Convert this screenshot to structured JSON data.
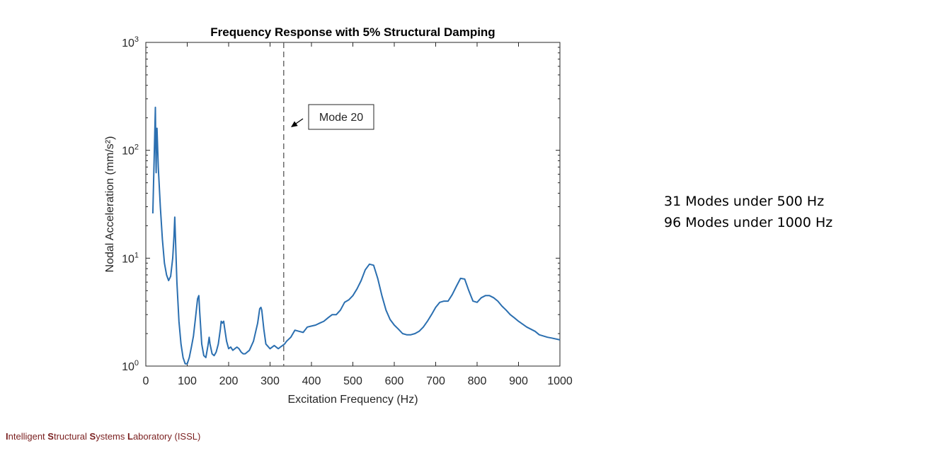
{
  "chart_data": {
    "type": "line",
    "title": "Frequency Response with 5% Structural Damping",
    "xlabel": "Excitation Frequency (Hz)",
    "ylabel": "Nodal Acceleration (mm/s²)",
    "x_scale": "linear",
    "y_scale": "log",
    "xlim": [
      0,
      1000
    ],
    "ylim": [
      1,
      1000
    ],
    "x_ticks": [
      0,
      100,
      200,
      300,
      400,
      500,
      600,
      700,
      800,
      900,
      1000
    ],
    "x_tick_labels": [
      "0",
      "100",
      "200",
      "300",
      "400",
      "500",
      "600",
      "700",
      "800",
      "900",
      "1000"
    ],
    "y_ticks": [
      1,
      10,
      100,
      1000
    ],
    "y_tick_labels": [
      {
        "base": "10",
        "exp": "0"
      },
      {
        "base": "10",
        "exp": "1"
      },
      {
        "base": "10",
        "exp": "2"
      },
      {
        "base": "10",
        "exp": "3"
      }
    ],
    "grid": false,
    "line_color": "#2b6fb0",
    "series": [
      {
        "x": [
          17,
          20,
          23,
          24,
          25,
          26,
          27,
          30,
          35,
          40,
          45,
          50,
          55,
          60,
          65,
          68,
          70,
          75,
          80,
          85,
          90,
          95,
          100,
          105,
          110,
          115,
          120,
          125,
          128,
          130,
          135,
          140,
          145,
          150,
          153,
          155,
          160,
          165,
          170,
          175,
          180,
          182,
          185,
          188,
          190,
          195,
          200,
          205,
          210,
          215,
          220,
          225,
          230,
          235,
          240,
          250,
          260,
          270,
          275,
          278,
          280,
          285,
          290,
          300,
          310,
          320,
          325,
          330,
          335,
          340,
          350,
          360,
          370,
          380,
          390,
          400,
          410,
          420,
          430,
          440,
          450,
          460,
          470,
          480,
          490,
          500,
          510,
          520,
          530,
          540,
          550,
          560,
          570,
          580,
          590,
          600,
          610,
          620,
          630,
          640,
          650,
          660,
          670,
          680,
          690,
          700,
          710,
          720,
          730,
          740,
          750,
          760,
          770,
          780,
          790,
          800,
          810,
          820,
          830,
          840,
          850,
          860,
          870,
          880,
          890,
          900,
          920,
          940,
          950,
          960,
          970,
          980,
          1000
        ],
        "y": [
          26,
          80,
          250,
          120,
          62,
          140,
          160,
          70,
          30,
          15,
          9,
          7,
          6.2,
          6.8,
          10,
          16,
          24,
          6,
          2.6,
          1.6,
          1.2,
          1.05,
          1.05,
          1.2,
          1.5,
          1.9,
          2.8,
          4.2,
          4.5,
          3.2,
          1.6,
          1.25,
          1.2,
          1.55,
          1.85,
          1.6,
          1.3,
          1.25,
          1.35,
          1.6,
          2.2,
          2.6,
          2.5,
          2.6,
          2.3,
          1.7,
          1.45,
          1.5,
          1.4,
          1.45,
          1.5,
          1.45,
          1.35,
          1.3,
          1.3,
          1.4,
          1.7,
          2.5,
          3.4,
          3.5,
          3.3,
          2.2,
          1.6,
          1.45,
          1.55,
          1.45,
          1.5,
          1.55,
          1.6,
          1.7,
          1.85,
          2.15,
          2.1,
          2.05,
          2.3,
          2.35,
          2.4,
          2.5,
          2.6,
          2.8,
          3,
          3,
          3.3,
          3.9,
          4.1,
          4.5,
          5.2,
          6.2,
          7.8,
          8.8,
          8.6,
          6.5,
          4.5,
          3.3,
          2.7,
          2.4,
          2.2,
          2,
          1.95,
          1.95,
          2,
          2.1,
          2.3,
          2.6,
          3,
          3.5,
          3.9,
          4,
          4,
          4.6,
          5.5,
          6.5,
          6.4,
          5,
          4,
          3.9,
          4.3,
          4.5,
          4.5,
          4.3,
          4,
          3.6,
          3.3,
          3,
          2.8,
          2.6,
          2.3,
          2.1,
          1.95,
          1.9,
          1.85,
          1.82,
          1.75
        ]
      }
    ],
    "reference_line": {
      "x": 333,
      "style": "dashed"
    },
    "annotation": {
      "text": "Mode 20"
    }
  },
  "notes": {
    "line1": "31 Modes under 500 Hz",
    "line2": "96 Modes under 1000 Hz"
  },
  "footer": {
    "parts": [
      {
        "t": "I",
        "b": true
      },
      {
        "t": "ntelligent ",
        "b": false
      },
      {
        "t": "S",
        "b": true
      },
      {
        "t": "tructural ",
        "b": false
      },
      {
        "t": "S",
        "b": true
      },
      {
        "t": "ystems ",
        "b": false
      },
      {
        "t": "L",
        "b": true
      },
      {
        "t": "aboratory (ISSL)",
        "b": false
      }
    ]
  }
}
